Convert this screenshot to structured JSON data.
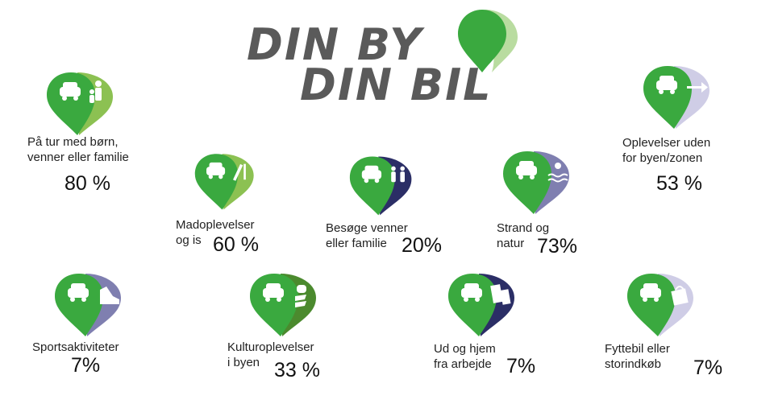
{
  "title": {
    "line1": "DIN BY",
    "line2": "DIN BIL"
  },
  "colors": {
    "green": "#3aa93f",
    "light_green": "#8cc152",
    "navy": "#2b2e66",
    "lavender": "#7f7fb0",
    "pale_lavender": "#cfcde6",
    "olive": "#4b8a2e",
    "title_gray": "#5a5a5a"
  },
  "items": [
    {
      "label_lines": [
        "På tur med børn,",
        "venner eller familie"
      ],
      "percent": "80 %",
      "icon": "family-icon"
    },
    {
      "label_lines": [
        "Madoplevelser",
        "og is"
      ],
      "percent": "60 %",
      "icon": "ice-cream-icon"
    },
    {
      "label_lines": [
        "Besøge venner",
        "eller familie"
      ],
      "percent": "20%",
      "icon": "friends-icon"
    },
    {
      "label_lines": [
        "Strand og",
        "natur"
      ],
      "percent": "73%",
      "icon": "sun-waves-icon"
    },
    {
      "label_lines": [
        "Oplevelser uden",
        "for byen/zonen"
      ],
      "percent": "53 %",
      "icon": "arrow-right-icon"
    },
    {
      "label_lines": [
        "Sportsaktiviteter"
      ],
      "percent": "7%",
      "icon": "running-shoe-icon"
    },
    {
      "label_lines": [
        "Kulturoplevelser",
        "i byen"
      ],
      "percent": "33 %",
      "icon": "culture-icon"
    },
    {
      "label_lines": [
        "Ud og hjem",
        "fra arbejde"
      ],
      "percent": "7%",
      "icon": "office-building-icon"
    },
    {
      "label_lines": [
        "Fyttebil eller",
        "storindkøb"
      ],
      "percent": "7%",
      "icon": "shopping-bag-icon"
    }
  ]
}
